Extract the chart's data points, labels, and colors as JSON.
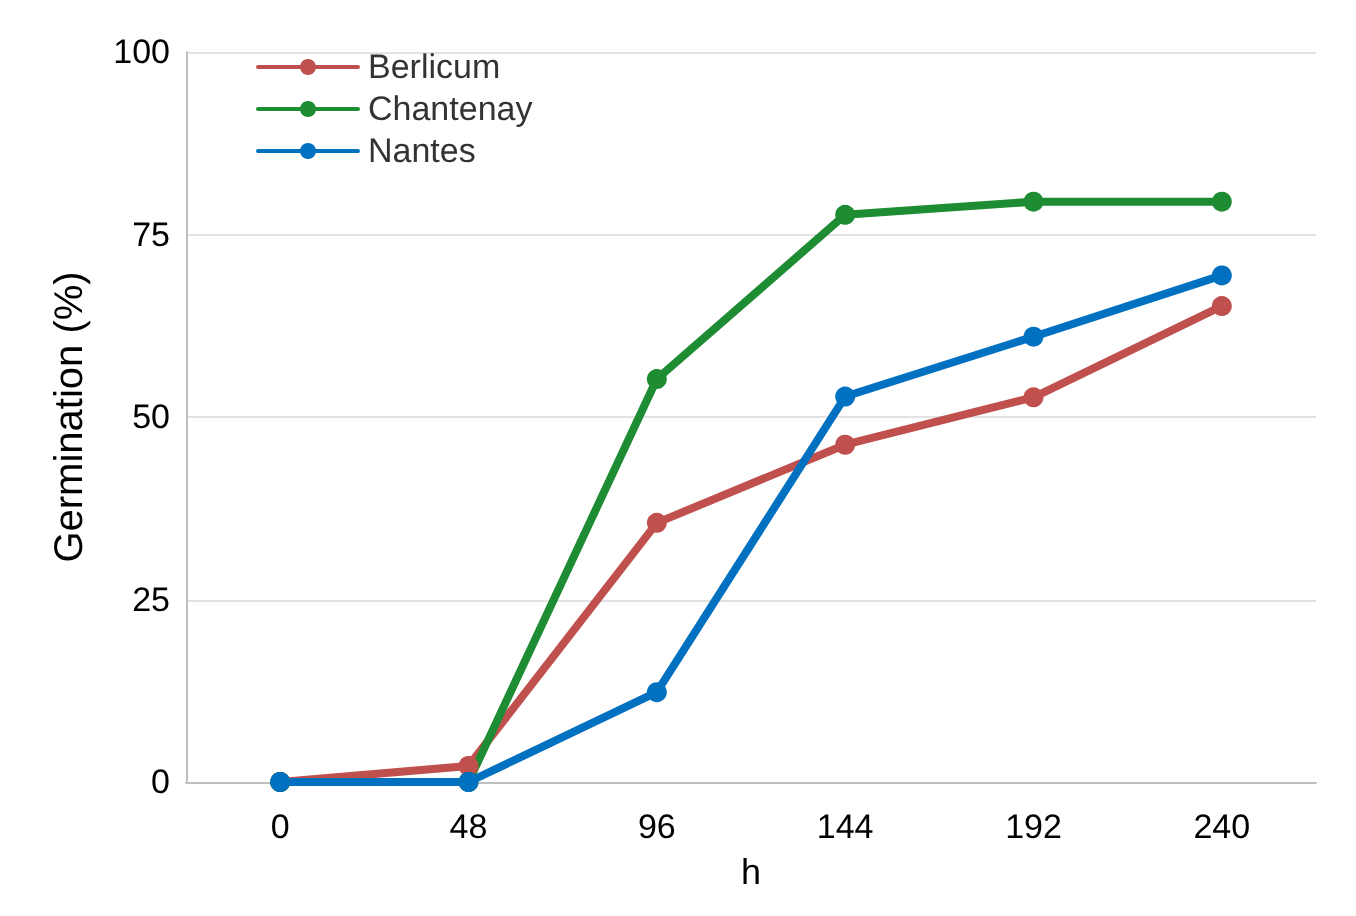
{
  "chart_data": {
    "type": "line",
    "xlabel": "h",
    "ylabel": "Germination (%)",
    "categories": [
      "0",
      "48",
      "96",
      "144",
      "192",
      "240"
    ],
    "series": [
      {
        "name": "Berlicum",
        "color": "#c0504d",
        "values": [
          0,
          2.2,
          35.5,
          46.2,
          52.7,
          65.2
        ]
      },
      {
        "name": "Chantenay",
        "color": "#1e8c32",
        "values": [
          0,
          0,
          55.2,
          77.7,
          79.5,
          79.5
        ]
      },
      {
        "name": "Nantes",
        "color": "#0070c0",
        "values": [
          0,
          0,
          12.3,
          52.8,
          61,
          69.4
        ]
      }
    ],
    "ylim": [
      0,
      100
    ],
    "yticks": [
      0,
      25,
      50,
      75,
      100
    ],
    "grid": "y",
    "legend": "top left",
    "marker": "circle",
    "line_style": "solid"
  }
}
